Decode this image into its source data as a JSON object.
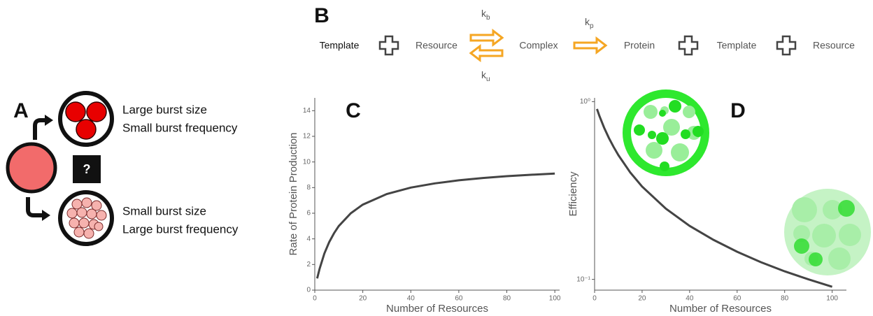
{
  "panel_a": {
    "label": "A",
    "unknown": "?",
    "outcomes": [
      {
        "line1": "Large burst size",
        "line2": "Small burst frequency"
      },
      {
        "line1": "Small burst size",
        "line2": "Large burst frequency"
      }
    ]
  },
  "panel_b": {
    "label": "B",
    "reaction": [
      "Template",
      "Resource",
      "Complex",
      "Protein",
      "Template",
      "Resource"
    ],
    "rates": [
      {
        "symbol": "k",
        "subscript": "b"
      },
      {
        "symbol": "k",
        "subscript": "u"
      },
      {
        "symbol": "k",
        "subscript": "p"
      }
    ]
  },
  "chart_data": [
    {
      "type": "line",
      "title": "C",
      "x_label": "Number of Resources",
      "y_label": "Rate of Protein Production",
      "x": [
        1,
        2,
        4,
        6,
        8,
        10,
        15,
        20,
        30,
        40,
        50,
        60,
        70,
        80,
        90,
        100
      ],
      "values": [
        0.91,
        1.67,
        2.86,
        3.75,
        4.44,
        5,
        6,
        6.67,
        7.5,
        8,
        8.33,
        8.57,
        8.75,
        8.89,
        9,
        9.09
      ],
      "color": "#444444",
      "xlim": [
        0,
        102
      ],
      "ylim": [
        0,
        15
      ],
      "xticks": [
        0,
        20,
        40,
        60,
        80,
        100
      ],
      "yticks": [
        0,
        2,
        4,
        6,
        8,
        10,
        12,
        14
      ],
      "log_y": false
    },
    {
      "type": "line",
      "title": "D",
      "x_label": "Number of Resources",
      "y_label": "Efficiency",
      "x": [
        1,
        2,
        4,
        6,
        8,
        10,
        15,
        20,
        30,
        40,
        50,
        60,
        70,
        80,
        90,
        100
      ],
      "values": [
        0.909,
        0.833,
        0.714,
        0.625,
        0.556,
        0.5,
        0.4,
        0.333,
        0.25,
        0.2,
        0.167,
        0.143,
        0.125,
        0.111,
        0.1,
        0.0909
      ],
      "color": "#444444",
      "xlim": [
        0,
        106
      ],
      "ylim": [
        0.087,
        1.05
      ],
      "xticks": [
        0,
        20,
        40,
        60,
        80,
        100
      ],
      "yticks": [
        {
          "value": 1,
          "label": "10⁰"
        },
        {
          "value": 0.1,
          "label": "10⁻¹"
        }
      ],
      "log_y": true
    }
  ]
}
